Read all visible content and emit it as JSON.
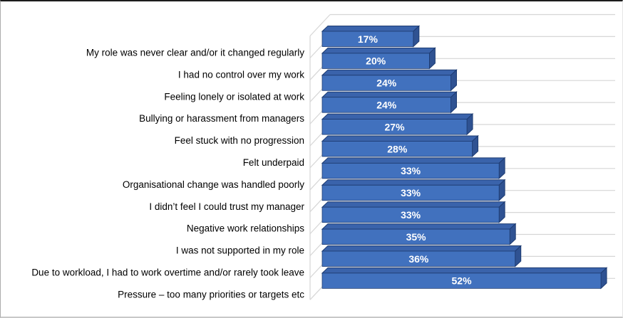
{
  "chart_data": {
    "type": "bar",
    "orientation": "horizontal",
    "effect": "3d",
    "title": "",
    "xlabel": "",
    "ylabel": "",
    "xlim": [
      0,
      55
    ],
    "grid": true,
    "legend": false,
    "axis_value_labels_visible": false,
    "categories": [
      "My role was never clear and/or it changed regularly",
      "I had no control over my work",
      "Feeling lonely or isolated at work",
      "Bullying or harassment from managers",
      "Feel stuck with no progression",
      "Felt underpaid",
      "Organisational change was handled poorly",
      "I didn’t feel I could trust my manager",
      "Negative work relationships",
      "I was not supported in my role",
      "Due to workload, I had to work overtime and/or rarely took leave",
      "Pressure – too many priorities or targets etc"
    ],
    "values": [
      17,
      20,
      24,
      24,
      27,
      28,
      33,
      33,
      33,
      35,
      36,
      52
    ],
    "value_labels": [
      "17%",
      "20%",
      "24%",
      "24%",
      "27%",
      "28%",
      "33%",
      "33%",
      "33%",
      "35%",
      "36%",
      "52%"
    ],
    "style": {
      "bar_front": "#4171BE",
      "bar_top": "#3A63AB",
      "bar_side": "#2F5292",
      "bar_outline": "#1E3C72",
      "gridline": "#D6D6D6",
      "wall_line": "#D6D6D6",
      "category_label_color": "#000000",
      "value_label_color": "#FFFFFF",
      "background": "#FFFFFF"
    }
  }
}
